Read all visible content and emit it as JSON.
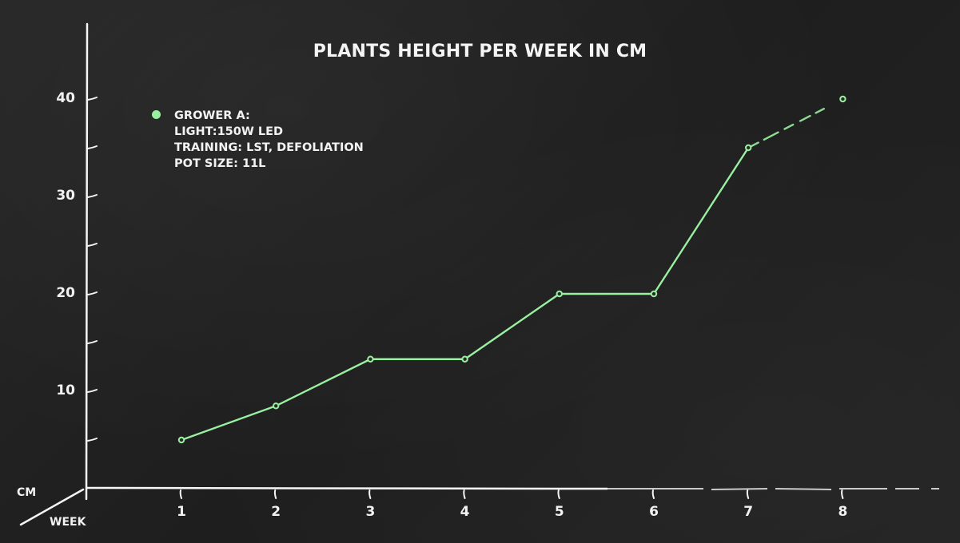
{
  "chart_data": {
    "type": "line",
    "title": "PLANTS HEIGHT PER WEEK IN CM",
    "xlabel": "WEEK",
    "ylabel": "CM",
    "x": [
      1,
      2,
      3,
      4,
      5,
      6,
      7,
      8
    ],
    "categories": [
      "1",
      "2",
      "3",
      "4",
      "5",
      "6",
      "7",
      "8"
    ],
    "series": [
      {
        "name": "GROWER A",
        "values": [
          5,
          8.5,
          13.3,
          13.3,
          20,
          20,
          35,
          40
        ],
        "color": "#98f0a0"
      }
    ],
    "ylim": [
      0,
      45
    ],
    "yticks_labeled": [
      10,
      20,
      30,
      40
    ],
    "yticks_minor": [
      5,
      15,
      25,
      35
    ],
    "grid": false,
    "legend_position": "upper-left",
    "annotations": [
      "Segment from week 7 to week 8 is dashed"
    ]
  },
  "header": {
    "title": "PLANTS HEIGHT PER WEEK IN CM"
  },
  "legend": {
    "dot_color": "#98f0a0",
    "lines": [
      "GROWER A:",
      "LIGHT:150W LED",
      "TRAINING: LST, DEFOLIATION",
      "POT SIZE: 11L"
    ]
  },
  "axes": {
    "y_unit_label": "CM",
    "x_unit_label": "WEEK",
    "y_tick_labels": [
      "10",
      "20",
      "30",
      "40"
    ],
    "x_tick_labels": [
      "1",
      "2",
      "3",
      "4",
      "5",
      "6",
      "7",
      "8"
    ]
  },
  "colors": {
    "background": "#222222",
    "axis": "#f5f5f5",
    "line": "#98f0a0"
  }
}
